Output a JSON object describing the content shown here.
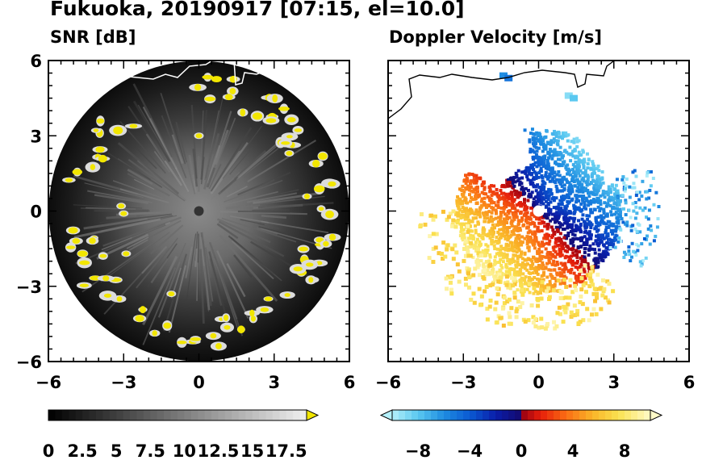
{
  "title": "Fukuoka, 20190917 [07:15, el=10.0]",
  "colors": {
    "echo_yellow": "#f2e600",
    "coast": "#ffffff",
    "coast_dop": "#000000"
  },
  "chart_data": [
    {
      "type": "heatmap",
      "title": "SNR [dB]",
      "xlim": [
        -6,
        6
      ],
      "ylim": [
        -6,
        6
      ],
      "x_ticks": [
        "−6",
        "−3",
        "0",
        "3",
        "6"
      ],
      "y_ticks": [
        "6",
        "3",
        "0",
        "−3",
        "−6"
      ],
      "colorbar": {
        "range": [
          0,
          19
        ],
        "extend": "max",
        "tick_labels": [
          "0",
          "2.5",
          "5",
          "7.5",
          "10",
          "12.5",
          "15",
          "17.5"
        ],
        "tick_values": [
          0,
          2.5,
          5,
          7.5,
          10,
          12.5,
          15,
          17.5
        ]
      }
    },
    {
      "type": "heatmap",
      "title": "Doppler Velocity [m/s]",
      "xlim": [
        -6,
        6
      ],
      "ylim": [
        -6,
        6
      ],
      "x_ticks": [
        "−6",
        "−3",
        "0",
        "3",
        "6"
      ],
      "y_ticks": [
        "6",
        "3",
        "0",
        "−3",
        "−6"
      ],
      "colorbar": {
        "range": [
          -10,
          10
        ],
        "extend": "both",
        "tick_labels": [
          "−8",
          "−4",
          "0",
          "4",
          "8"
        ],
        "tick_values": [
          -8,
          -4,
          0,
          4,
          8
        ]
      }
    }
  ]
}
